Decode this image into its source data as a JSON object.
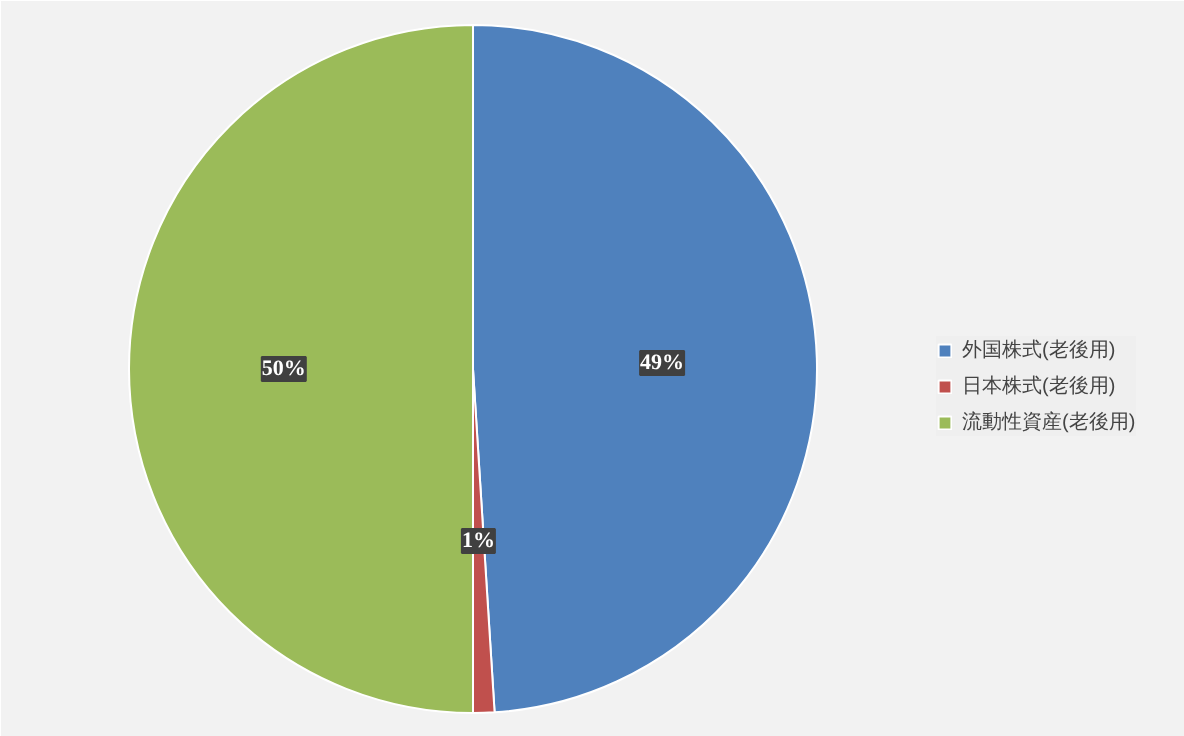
{
  "chart_data": {
    "type": "pie",
    "categories": [
      "外国株式(老後用)",
      "日本株式(老後用)",
      "流動性資産(老後用)"
    ],
    "values": [
      49,
      1,
      50
    ],
    "colors": [
      "#4f81bd",
      "#c0504d",
      "#9bbb59"
    ],
    "value_labels": [
      "49%",
      "1%",
      "50%"
    ],
    "legend": "right"
  }
}
